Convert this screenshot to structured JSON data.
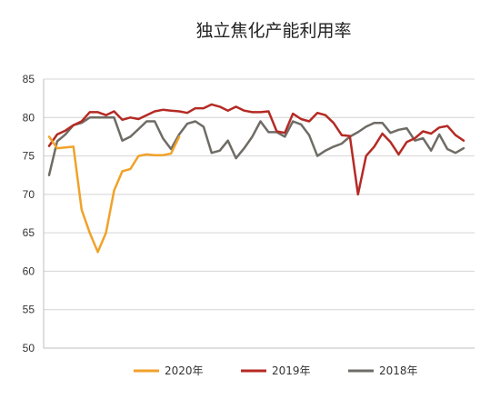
{
  "chart_data": {
    "type": "line",
    "title": "独立焦化产能利用率",
    "xlabel": "",
    "ylabel": "",
    "ylim": [
      50,
      85
    ],
    "yticks": [
      "50",
      "55",
      "60",
      "65",
      "70",
      "75",
      "80",
      "85"
    ],
    "grid": true,
    "legend_position": "bottom",
    "series": [
      {
        "name": "2020年",
        "color": "#f0a22a",
        "values": [
          77.5,
          76.0,
          76.1,
          76.2,
          68.0,
          65.0,
          62.5,
          65.0,
          70.5,
          73.0,
          73.3,
          75.0,
          75.2,
          75.1,
          75.1,
          75.3,
          77.5
        ]
      },
      {
        "name": "2019年",
        "color": "#b52a24",
        "values": [
          76.3,
          77.8,
          78.3,
          79.0,
          79.5,
          80.7,
          80.7,
          80.3,
          80.8,
          79.7,
          80.0,
          79.8,
          80.3,
          80.8,
          81.0,
          80.9,
          80.8,
          80.6,
          81.2,
          81.2,
          81.7,
          81.4,
          80.9,
          81.4,
          80.9,
          80.7,
          80.7,
          80.8,
          78.2,
          78.0,
          80.5,
          79.8,
          79.5,
          80.6,
          80.3,
          79.3,
          77.7,
          77.6,
          70.0,
          75.0,
          76.2,
          77.9,
          76.8,
          75.2,
          76.8,
          77.3,
          78.2,
          77.9,
          78.7,
          78.9,
          77.7,
          77.0
        ]
      },
      {
        "name": "2018年",
        "color": "#6f6c66",
        "values": [
          72.5,
          76.9,
          77.8,
          79.0,
          79.3,
          80.0,
          80.0,
          80.0,
          80.0,
          77.0,
          77.5,
          78.5,
          79.5,
          79.5,
          77.3,
          75.9,
          77.8,
          79.2,
          79.5,
          78.8,
          75.4,
          75.7,
          77.0,
          74.7,
          76.0,
          77.5,
          79.5,
          78.1,
          78.1,
          77.5,
          79.5,
          79.1,
          77.7,
          75.0,
          75.7,
          76.2,
          76.6,
          77.5,
          78.1,
          78.8,
          79.3,
          79.3,
          78.0,
          78.4,
          78.6,
          77.0,
          77.3,
          75.7,
          77.8,
          75.9,
          75.4,
          76.0
        ]
      }
    ]
  }
}
